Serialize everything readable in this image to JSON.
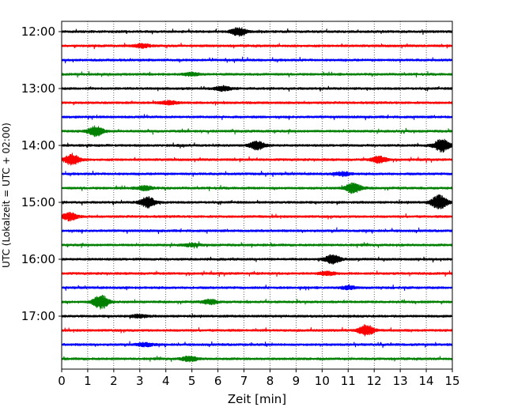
{
  "chart_data": {
    "type": "line",
    "title": "",
    "xlabel": "Zeit  [min]",
    "ylabel": "UTC (Lokalzeit = UTC + 02:00)",
    "xlim": [
      0,
      15
    ],
    "x_ticks": [
      "0",
      "1",
      "2",
      "3",
      "4",
      "5",
      "6",
      "7",
      "8",
      "9",
      "10",
      "11",
      "12",
      "13",
      "14",
      "15"
    ],
    "y_ticks": [
      "12:00",
      "13:00",
      "14:00",
      "15:00",
      "16:00",
      "17:00"
    ],
    "grid": {
      "x": true,
      "y": false,
      "style": "dotted"
    },
    "trace_interval_min": 15,
    "trace_colors": [
      "#000000",
      "#ff0000",
      "#0000ff",
      "#008000"
    ],
    "series": [
      {
        "start": "12:00",
        "events": [
          {
            "t": 6.8,
            "amp": 0.55
          }
        ]
      },
      {
        "start": "12:15",
        "events": [
          {
            "t": 3.1,
            "amp": 0.25
          }
        ]
      },
      {
        "start": "12:30",
        "events": []
      },
      {
        "start": "12:45",
        "events": [
          {
            "t": 5.0,
            "amp": 0.2
          }
        ]
      },
      {
        "start": "13:00",
        "events": [
          {
            "t": 6.2,
            "amp": 0.3
          }
        ]
      },
      {
        "start": "13:15",
        "events": [
          {
            "t": 4.1,
            "amp": 0.25
          }
        ]
      },
      {
        "start": "13:30",
        "events": []
      },
      {
        "start": "13:45",
        "events": [
          {
            "t": 1.3,
            "amp": 0.65
          }
        ]
      },
      {
        "start": "14:00",
        "events": [
          {
            "t": 7.5,
            "amp": 0.55
          },
          {
            "t": 14.6,
            "amp": 0.85
          }
        ]
      },
      {
        "start": "14:15",
        "events": [
          {
            "t": 0.4,
            "amp": 0.7
          },
          {
            "t": 12.2,
            "amp": 0.45
          }
        ]
      },
      {
        "start": "14:30",
        "events": [
          {
            "t": 10.8,
            "amp": 0.25
          }
        ]
      },
      {
        "start": "14:45",
        "events": [
          {
            "t": 3.2,
            "amp": 0.3
          },
          {
            "t": 11.2,
            "amp": 0.7
          }
        ]
      },
      {
        "start": "15:00",
        "events": [
          {
            "t": 3.3,
            "amp": 0.7
          },
          {
            "t": 14.5,
            "amp": 1.0
          }
        ]
      },
      {
        "start": "15:15",
        "events": [
          {
            "t": 0.3,
            "amp": 0.55
          }
        ]
      },
      {
        "start": "15:30",
        "events": []
      },
      {
        "start": "15:45",
        "events": [
          {
            "t": 5.0,
            "amp": 0.2
          }
        ]
      },
      {
        "start": "16:00",
        "events": [
          {
            "t": 10.4,
            "amp": 0.6
          }
        ]
      },
      {
        "start": "16:15",
        "events": [
          {
            "t": 10.2,
            "amp": 0.25
          }
        ]
      },
      {
        "start": "16:30",
        "events": [
          {
            "t": 11.0,
            "amp": 0.2
          }
        ]
      },
      {
        "start": "16:45",
        "events": [
          {
            "t": 1.5,
            "amp": 0.95
          },
          {
            "t": 5.7,
            "amp": 0.3
          }
        ]
      },
      {
        "start": "17:00",
        "events": [
          {
            "t": 3.0,
            "amp": 0.2
          }
        ]
      },
      {
        "start": "17:15",
        "events": [
          {
            "t": 11.7,
            "amp": 0.7
          }
        ]
      },
      {
        "start": "17:30",
        "events": [
          {
            "t": 3.2,
            "amp": 0.25
          }
        ]
      },
      {
        "start": "17:45",
        "events": [
          {
            "t": 4.9,
            "amp": 0.35
          }
        ]
      }
    ]
  }
}
